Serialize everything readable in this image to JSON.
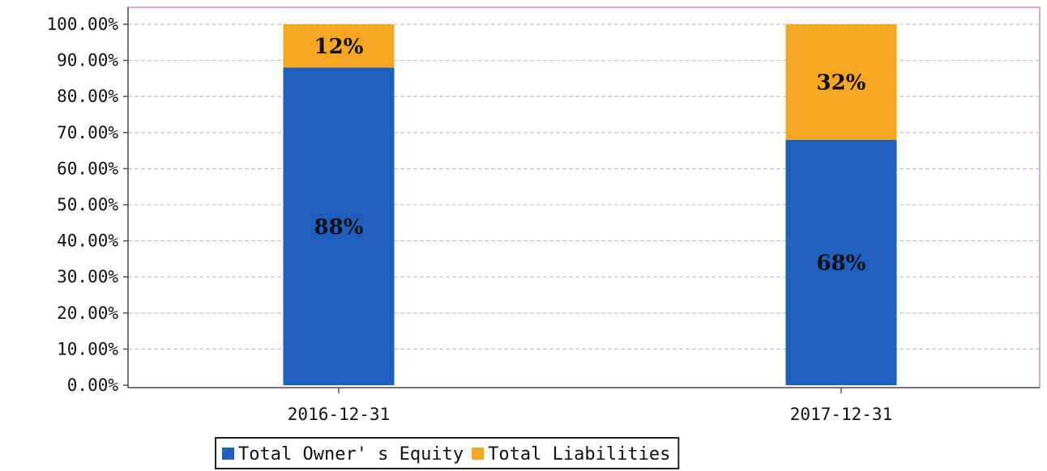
{
  "chart_data": {
    "type": "bar",
    "stacked": true,
    "categories": [
      "2016-12-31",
      "2017-12-31"
    ],
    "series": [
      {
        "name": "Total Owner' s Equity",
        "values": [
          88,
          68
        ],
        "labels": [
          "88%",
          "68%"
        ],
        "color": "#1f5fbf"
      },
      {
        "name": "Total Liabilities",
        "values": [
          12,
          32
        ],
        "labels": [
          "12%",
          "32%"
        ],
        "color": "#f5a623"
      }
    ],
    "ylim": [
      0,
      100
    ],
    "yticks": [
      0,
      10,
      20,
      30,
      40,
      50,
      60,
      70,
      80,
      90,
      100
    ],
    "ytick_labels": [
      "0.00%",
      "10.00%",
      "20.00%",
      "30.00%",
      "40.00%",
      "50.00%",
      "60.00%",
      "70.00%",
      "80.00%",
      "90.00%",
      "100.00%"
    ],
    "grid": true,
    "legend_position": "bottom-center",
    "title": "",
    "xlabel": "",
    "ylabel": "",
    "plot_border_color": "#d58ad8",
    "grid_color": "#b8b8b8"
  }
}
